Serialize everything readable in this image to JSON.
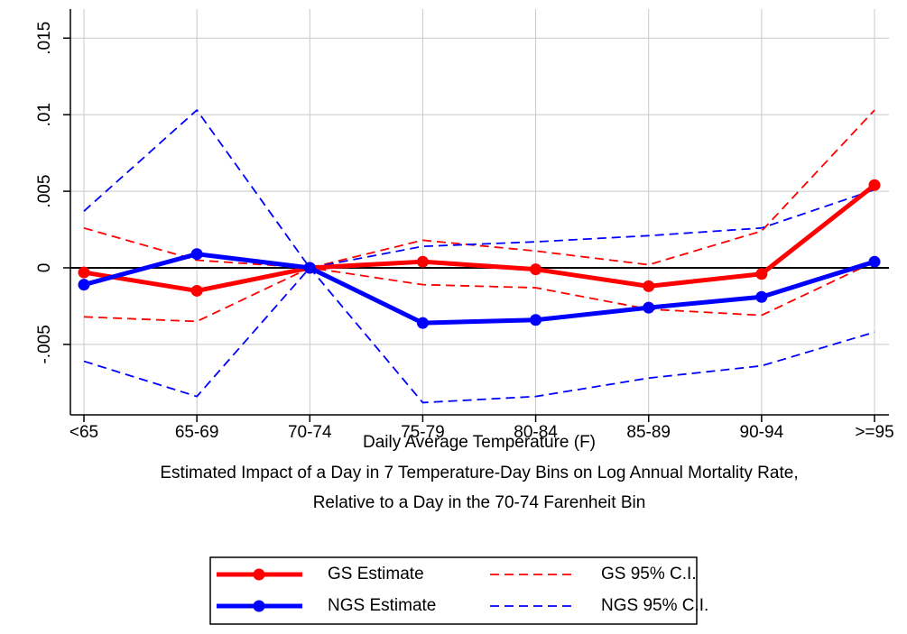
{
  "chart_data": {
    "type": "line",
    "x_label": "Daily Average Temperature (F)",
    "caption": [
      "Estimated Impact of a Day in 7 Temperature-Day Bins on Log Annual Mortality Rate,",
      "Relative to a Day in the 70-74 Farenheit Bin"
    ],
    "categories": [
      "<65",
      "65-69",
      "70-74",
      "75-79",
      "80-84",
      "85-89",
      "90-94",
      ">=95"
    ],
    "ylim": [
      -0.0096,
      0.0169
    ],
    "yticks": [
      {
        "value": -0.005,
        "label": "-.005"
      },
      0,
      {
        "value": 0.005,
        "label": ".005"
      },
      {
        "value": 0.01,
        "label": ".01"
      },
      {
        "value": 0.015,
        "label": ".015"
      }
    ],
    "grid": true,
    "zero_line": true,
    "series": [
      {
        "name": "GS 95% C.I.",
        "color": "#ff0000",
        "style": "dashed",
        "markers": false,
        "values": [
          0.0026,
          0.0005,
          0,
          0.0018,
          0.0011,
          0.0002,
          0.0024,
          0.0103
        ]
      },
      {
        "name": "GS 95% C.I.",
        "color": "#ff0000",
        "style": "dashed",
        "markers": false,
        "values": [
          -0.0032,
          -0.0035,
          0,
          -0.0011,
          -0.0013,
          -0.0027,
          -0.0031,
          0.0004
        ]
      },
      {
        "name": "NGS 95% C.I.",
        "color": "#0000ff",
        "style": "dashed",
        "markers": false,
        "values": [
          0.0037,
          0.0103,
          0,
          0.0014,
          0.0017,
          0.0021,
          0.0026,
          0.0051
        ]
      },
      {
        "name": "NGS 95% C.I.",
        "color": "#0000ff",
        "style": "dashed",
        "markers": false,
        "values": [
          -0.0061,
          -0.0084,
          0,
          -0.0088,
          -0.0084,
          -0.0072,
          -0.0064,
          -0.0042
        ]
      },
      {
        "name": "GS Estimate",
        "color": "#ff0000",
        "style": "solid",
        "markers": true,
        "values": [
          -0.0003,
          -0.0015,
          0,
          0.0004,
          -0.0001,
          -0.0012,
          -0.0004,
          0.0054
        ]
      },
      {
        "name": "NGS Estimate",
        "color": "#0000ff",
        "style": "solid",
        "markers": true,
        "values": [
          -0.0011,
          0.0009,
          0,
          -0.0036,
          -0.0034,
          -0.0026,
          -0.0019,
          0.0004
        ]
      }
    ],
    "legend_order": [
      4,
      0,
      5,
      2
    ]
  }
}
